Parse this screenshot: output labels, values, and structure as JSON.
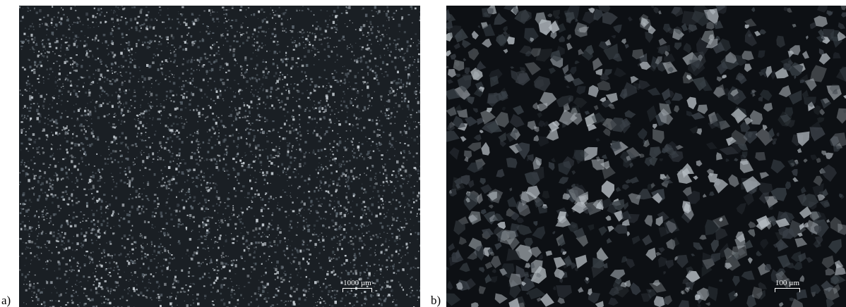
{
  "panels": [
    {
      "label": "a)",
      "scale_text": "1000 µm",
      "colors": {
        "background": "#1a1f24",
        "grain_light": "#c9d0d6",
        "grain_mid": "#5d6770"
      }
    },
    {
      "label": "b)",
      "scale_text": "100 µm",
      "colors": {
        "background": "#0d1014",
        "grain_light": "#b5bcc2",
        "grain_mid": "#3a4148"
      }
    }
  ]
}
